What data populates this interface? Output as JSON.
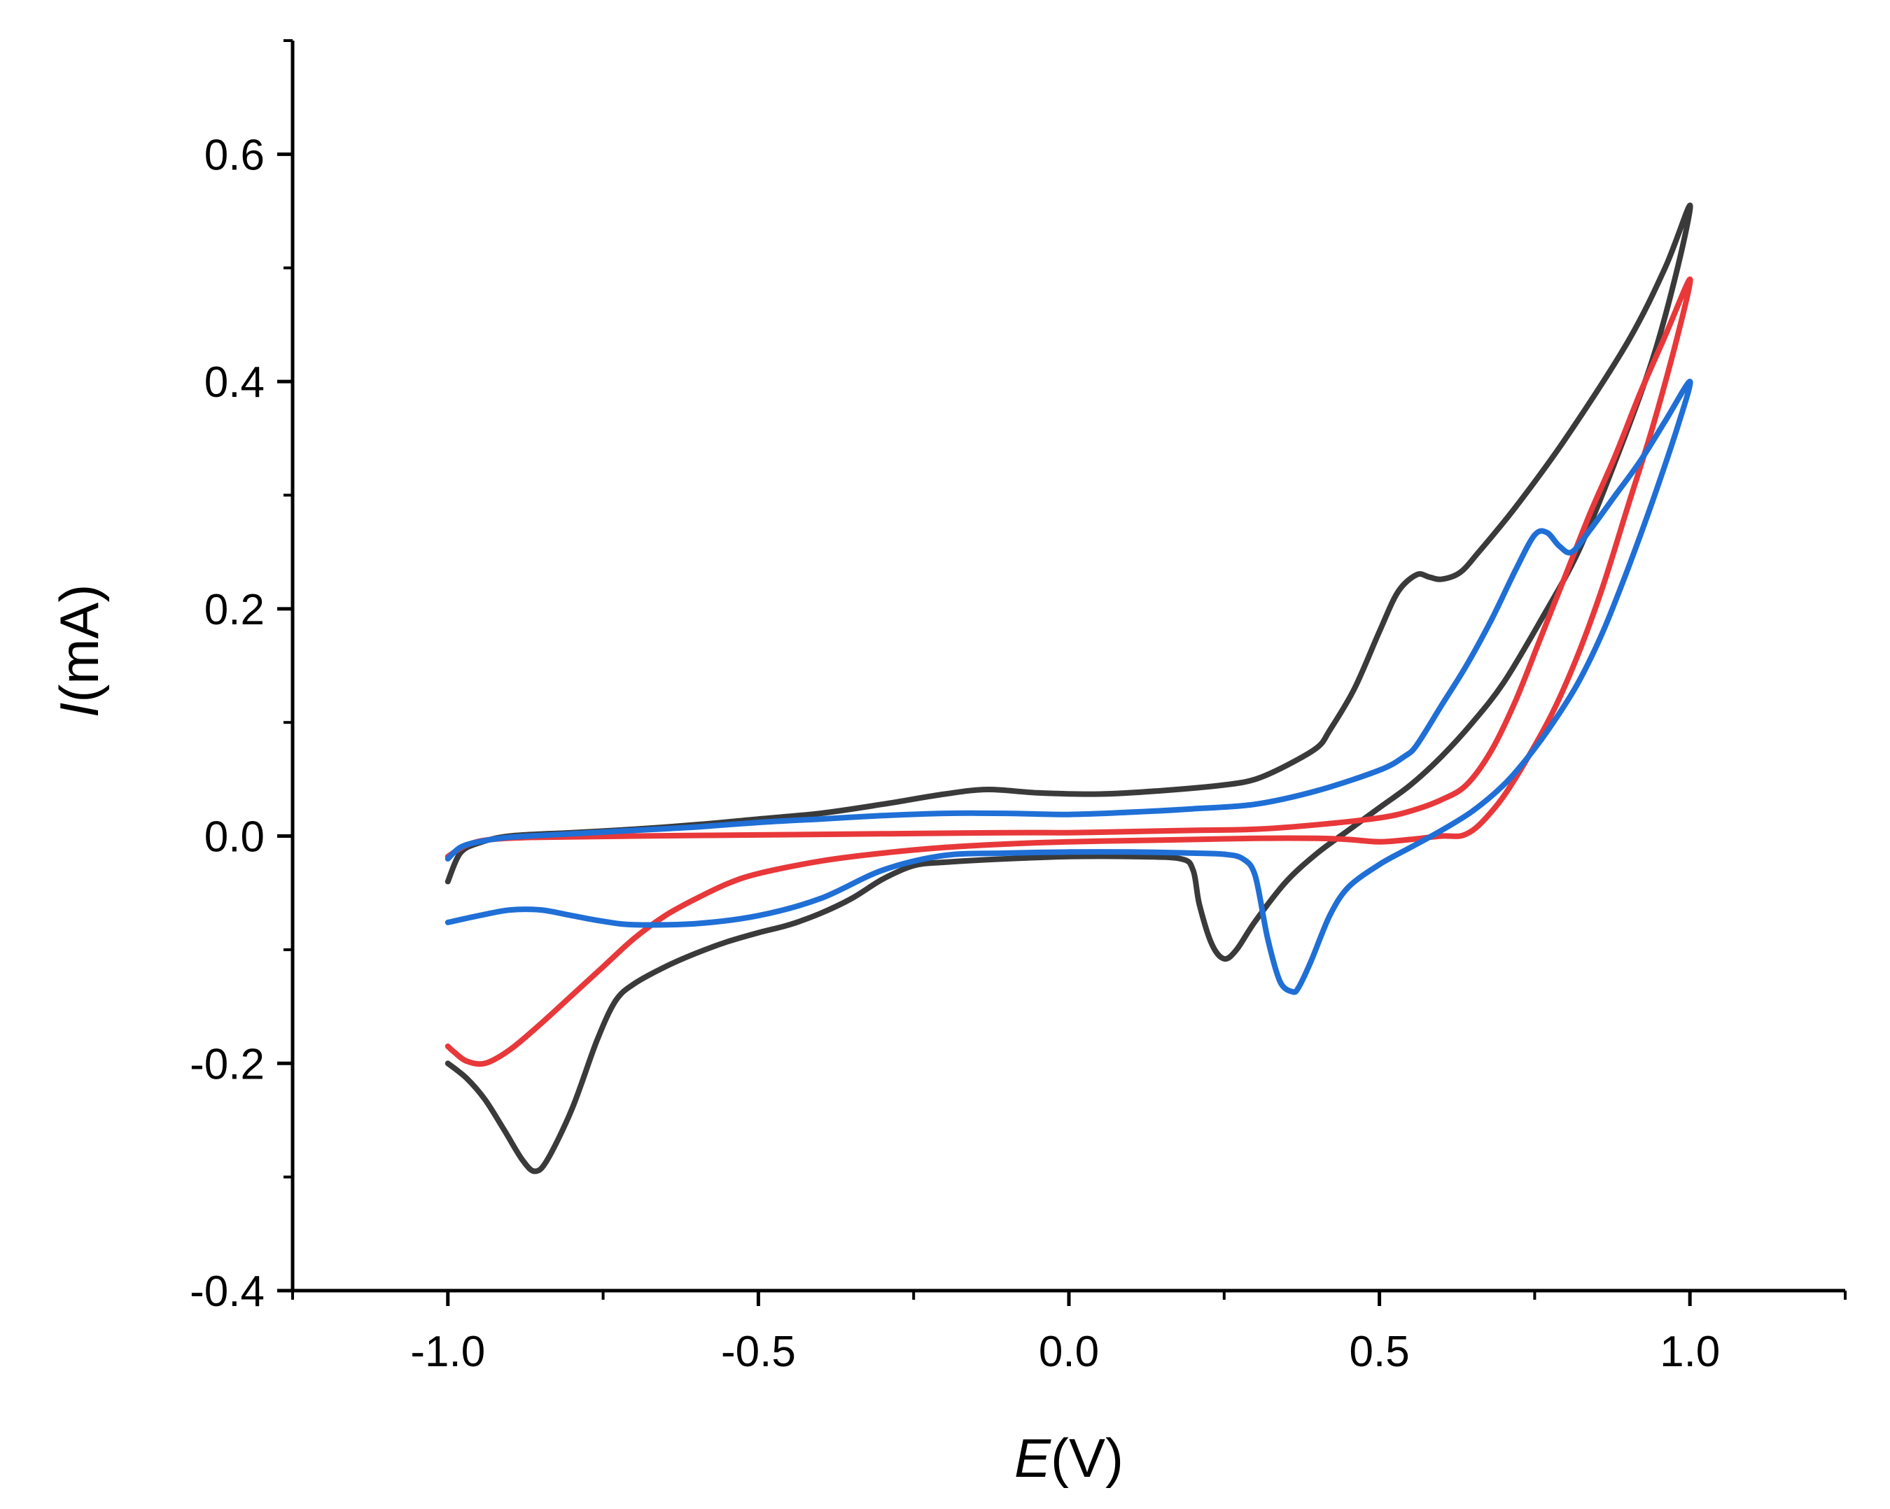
{
  "chart_data": {
    "type": "line",
    "title": "",
    "xlabel": {
      "italic": "E",
      "rest": "(V)"
    },
    "ylabel": {
      "italic": "I",
      "rest": "(mA)"
    },
    "xlim": [
      -1.25,
      1.25
    ],
    "ylim": [
      -0.4,
      0.7
    ],
    "x_ticks": [
      -1.0,
      -0.5,
      0.0,
      0.5,
      1.0
    ],
    "x_tick_labels": [
      "-1.0",
      "-0.5",
      "0.0",
      "0.5",
      "1.0"
    ],
    "y_ticks": [
      -0.4,
      -0.2,
      0.0,
      0.2,
      0.4,
      0.6
    ],
    "y_tick_labels": [
      "-0.4",
      "-0.2",
      "0.0",
      "0.2",
      "0.4",
      "0.6"
    ],
    "grid": false,
    "legend": "none",
    "series": [
      {
        "name": "black-cv",
        "color": "#3a3a3a",
        "points": [
          [
            -1.0,
            -0.04
          ],
          [
            -0.98,
            -0.015
          ],
          [
            -0.95,
            -0.006
          ],
          [
            -0.9,
            0.0
          ],
          [
            -0.8,
            0.003
          ],
          [
            -0.7,
            0.006
          ],
          [
            -0.6,
            0.01
          ],
          [
            -0.5,
            0.015
          ],
          [
            -0.4,
            0.02
          ],
          [
            -0.3,
            0.028
          ],
          [
            -0.2,
            0.037
          ],
          [
            -0.13,
            0.041
          ],
          [
            -0.05,
            0.038
          ],
          [
            0.05,
            0.037
          ],
          [
            0.15,
            0.04
          ],
          [
            0.25,
            0.045
          ],
          [
            0.3,
            0.05
          ],
          [
            0.35,
            0.062
          ],
          [
            0.4,
            0.078
          ],
          [
            0.42,
            0.093
          ],
          [
            0.46,
            0.13
          ],
          [
            0.5,
            0.18
          ],
          [
            0.53,
            0.215
          ],
          [
            0.56,
            0.23
          ],
          [
            0.58,
            0.228
          ],
          [
            0.6,
            0.226
          ],
          [
            0.63,
            0.232
          ],
          [
            0.66,
            0.25
          ],
          [
            0.72,
            0.29
          ],
          [
            0.8,
            0.35
          ],
          [
            0.9,
            0.435
          ],
          [
            0.96,
            0.5
          ],
          [
            1.0,
            0.555
          ],
          [
            0.98,
            0.5
          ],
          [
            0.94,
            0.42
          ],
          [
            0.88,
            0.33
          ],
          [
            0.82,
            0.25
          ],
          [
            0.76,
            0.19
          ],
          [
            0.7,
            0.135
          ],
          [
            0.65,
            0.1
          ],
          [
            0.6,
            0.07
          ],
          [
            0.55,
            0.045
          ],
          [
            0.5,
            0.025
          ],
          [
            0.45,
            0.005
          ],
          [
            0.4,
            -0.015
          ],
          [
            0.35,
            -0.04
          ],
          [
            0.3,
            -0.075
          ],
          [
            0.27,
            -0.1
          ],
          [
            0.25,
            -0.108
          ],
          [
            0.23,
            -0.095
          ],
          [
            0.21,
            -0.06
          ],
          [
            0.2,
            -0.03
          ],
          [
            0.18,
            -0.02
          ],
          [
            0.1,
            -0.018
          ],
          [
            0.0,
            -0.018
          ],
          [
            -0.1,
            -0.02
          ],
          [
            -0.2,
            -0.023
          ],
          [
            -0.25,
            -0.026
          ],
          [
            -0.3,
            -0.038
          ],
          [
            -0.35,
            -0.055
          ],
          [
            -0.4,
            -0.068
          ],
          [
            -0.45,
            -0.078
          ],
          [
            -0.5,
            -0.085
          ],
          [
            -0.55,
            -0.093
          ],
          [
            -0.6,
            -0.103
          ],
          [
            -0.65,
            -0.115
          ],
          [
            -0.7,
            -0.13
          ],
          [
            -0.73,
            -0.145
          ],
          [
            -0.76,
            -0.18
          ],
          [
            -0.8,
            -0.24
          ],
          [
            -0.84,
            -0.285
          ],
          [
            -0.86,
            -0.295
          ],
          [
            -0.88,
            -0.285
          ],
          [
            -0.91,
            -0.258
          ],
          [
            -0.94,
            -0.232
          ],
          [
            -0.97,
            -0.213
          ],
          [
            -1.0,
            -0.2
          ]
        ]
      },
      {
        "name": "red-cv",
        "color": "#e8383a",
        "points": [
          [
            -1.0,
            -0.018
          ],
          [
            -0.97,
            -0.008
          ],
          [
            -0.93,
            -0.003
          ],
          [
            -0.85,
            -0.001
          ],
          [
            -0.7,
            0.0
          ],
          [
            -0.5,
            0.001
          ],
          [
            -0.3,
            0.002
          ],
          [
            -0.1,
            0.003
          ],
          [
            0.0,
            0.003
          ],
          [
            0.1,
            0.004
          ],
          [
            0.2,
            0.005
          ],
          [
            0.3,
            0.006
          ],
          [
            0.4,
            0.01
          ],
          [
            0.5,
            0.016
          ],
          [
            0.55,
            0.022
          ],
          [
            0.6,
            0.032
          ],
          [
            0.64,
            0.045
          ],
          [
            0.68,
            0.075
          ],
          [
            0.72,
            0.12
          ],
          [
            0.76,
            0.175
          ],
          [
            0.8,
            0.23
          ],
          [
            0.84,
            0.285
          ],
          [
            0.88,
            0.335
          ],
          [
            0.92,
            0.39
          ],
          [
            0.96,
            0.44
          ],
          [
            1.0,
            0.49
          ],
          [
            0.98,
            0.44
          ],
          [
            0.94,
            0.36
          ],
          [
            0.9,
            0.29
          ],
          [
            0.86,
            0.22
          ],
          [
            0.82,
            0.16
          ],
          [
            0.78,
            0.11
          ],
          [
            0.74,
            0.07
          ],
          [
            0.7,
            0.035
          ],
          [
            0.67,
            0.015
          ],
          [
            0.65,
            0.005
          ],
          [
            0.63,
            0.0
          ],
          [
            0.6,
            0.0
          ],
          [
            0.55,
            -0.003
          ],
          [
            0.5,
            -0.005
          ],
          [
            0.45,
            -0.003
          ],
          [
            0.4,
            -0.002
          ],
          [
            0.3,
            -0.002
          ],
          [
            0.2,
            -0.003
          ],
          [
            0.1,
            -0.004
          ],
          [
            0.0,
            -0.005
          ],
          [
            -0.1,
            -0.007
          ],
          [
            -0.2,
            -0.01
          ],
          [
            -0.3,
            -0.015
          ],
          [
            -0.4,
            -0.022
          ],
          [
            -0.5,
            -0.033
          ],
          [
            -0.55,
            -0.042
          ],
          [
            -0.6,
            -0.055
          ],
          [
            -0.65,
            -0.07
          ],
          [
            -0.7,
            -0.09
          ],
          [
            -0.75,
            -0.115
          ],
          [
            -0.8,
            -0.14
          ],
          [
            -0.85,
            -0.165
          ],
          [
            -0.9,
            -0.188
          ],
          [
            -0.94,
            -0.2
          ],
          [
            -0.97,
            -0.198
          ],
          [
            -0.99,
            -0.19
          ],
          [
            -1.0,
            -0.185
          ]
        ]
      },
      {
        "name": "blue-cv",
        "color": "#1f6fd6",
        "points": [
          [
            -1.0,
            -0.02
          ],
          [
            -0.98,
            -0.01
          ],
          [
            -0.95,
            -0.005
          ],
          [
            -0.9,
            -0.001
          ],
          [
            -0.8,
            0.002
          ],
          [
            -0.7,
            0.005
          ],
          [
            -0.6,
            0.008
          ],
          [
            -0.5,
            0.012
          ],
          [
            -0.4,
            0.015
          ],
          [
            -0.3,
            0.018
          ],
          [
            -0.2,
            0.02
          ],
          [
            -0.1,
            0.02
          ],
          [
            0.0,
            0.019
          ],
          [
            0.1,
            0.021
          ],
          [
            0.2,
            0.024
          ],
          [
            0.3,
            0.028
          ],
          [
            0.4,
            0.04
          ],
          [
            0.5,
            0.058
          ],
          [
            0.54,
            0.07
          ],
          [
            0.56,
            0.08
          ],
          [
            0.6,
            0.115
          ],
          [
            0.64,
            0.15
          ],
          [
            0.68,
            0.19
          ],
          [
            0.72,
            0.235
          ],
          [
            0.75,
            0.265
          ],
          [
            0.77,
            0.267
          ],
          [
            0.79,
            0.255
          ],
          [
            0.81,
            0.25
          ],
          [
            0.84,
            0.27
          ],
          [
            0.88,
            0.3
          ],
          [
            0.92,
            0.33
          ],
          [
            0.96,
            0.365
          ],
          [
            1.0,
            0.4
          ],
          [
            0.98,
            0.36
          ],
          [
            0.94,
            0.295
          ],
          [
            0.9,
            0.235
          ],
          [
            0.86,
            0.18
          ],
          [
            0.82,
            0.135
          ],
          [
            0.78,
            0.1
          ],
          [
            0.74,
            0.07
          ],
          [
            0.7,
            0.045
          ],
          [
            0.65,
            0.022
          ],
          [
            0.6,
            0.005
          ],
          [
            0.55,
            -0.01
          ],
          [
            0.5,
            -0.025
          ],
          [
            0.45,
            -0.045
          ],
          [
            0.42,
            -0.07
          ],
          [
            0.39,
            -0.11
          ],
          [
            0.37,
            -0.133
          ],
          [
            0.36,
            -0.137
          ],
          [
            0.34,
            -0.128
          ],
          [
            0.32,
            -0.09
          ],
          [
            0.3,
            -0.035
          ],
          [
            0.28,
            -0.02
          ],
          [
            0.25,
            -0.016
          ],
          [
            0.2,
            -0.015
          ],
          [
            0.1,
            -0.014
          ],
          [
            0.0,
            -0.014
          ],
          [
            -0.1,
            -0.015
          ],
          [
            -0.2,
            -0.017
          ],
          [
            -0.3,
            -0.03
          ],
          [
            -0.4,
            -0.055
          ],
          [
            -0.5,
            -0.07
          ],
          [
            -0.6,
            -0.077
          ],
          [
            -0.7,
            -0.078
          ],
          [
            -0.75,
            -0.075
          ],
          [
            -0.8,
            -0.07
          ],
          [
            -0.85,
            -0.065
          ],
          [
            -0.9,
            -0.065
          ],
          [
            -0.95,
            -0.07
          ],
          [
            -1.0,
            -0.076
          ]
        ]
      }
    ]
  }
}
